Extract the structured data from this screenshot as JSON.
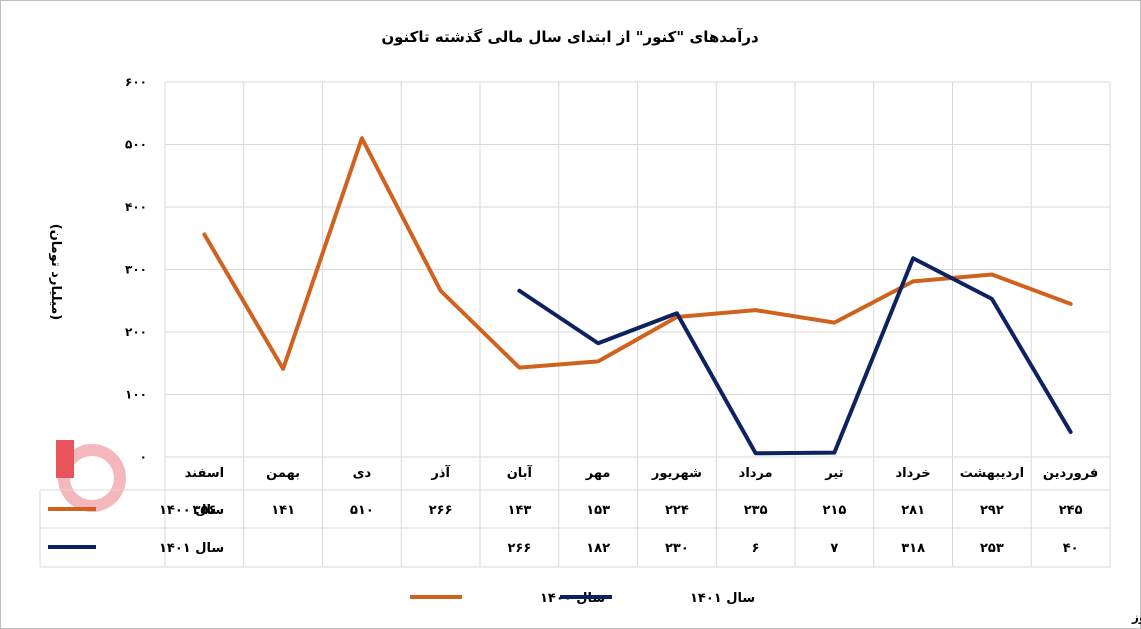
{
  "chart_data": {
    "type": "line",
    "title": "درآمدهای \"کنور\" از ابتدای سال مالی گذشته تاکنون",
    "ylabel": "(میلیارد تومان)",
    "ylim": [
      0,
      600
    ],
    "y_ticks": [
      "۰",
      "۱۰۰",
      "۲۰۰",
      "۳۰۰",
      "۴۰۰",
      "۵۰۰",
      "۶۰۰"
    ],
    "y_tick_values": [
      0,
      100,
      200,
      300,
      400,
      500,
      600
    ],
    "categories": [
      "فروردین",
      "اردیبهشت",
      "خرداد",
      "تیر",
      "مرداد",
      "شهریور",
      "مهر",
      "آبان",
      "آذر",
      "دی",
      "بهمن",
      "اسفند"
    ],
    "grid": true,
    "legend_position": "bottom",
    "series": [
      {
        "name": "سال ۱۴۰۰",
        "color": "#d0621f",
        "values": [
          245,
          292,
          281,
          215,
          235,
          224,
          153,
          143,
          266,
          510,
          141,
          356
        ],
        "value_labels": [
          "۲۴۵",
          "۲۹۲",
          "۲۸۱",
          "۲۱۵",
          "۲۳۵",
          "۲۲۴",
          "۱۵۳",
          "۱۴۳",
          "۲۶۶",
          "۵۱۰",
          "۱۴۱",
          "۳۵۶"
        ]
      },
      {
        "name": "سال ۱۴۰۱",
        "color": "#0d2361",
        "values": [
          40,
          253,
          318,
          7,
          6,
          230,
          182,
          266,
          null,
          null,
          null,
          null
        ],
        "value_labels": [
          "۴۰",
          "۲۵۳",
          "۳۱۸",
          "۷",
          "۶",
          "۲۳۰",
          "۱۸۲",
          "۲۶۶",
          "",
          "",
          "",
          ""
        ]
      }
    ]
  },
  "watermark": {
    "text": "بورس نیوز",
    "color": "#e8202a"
  }
}
